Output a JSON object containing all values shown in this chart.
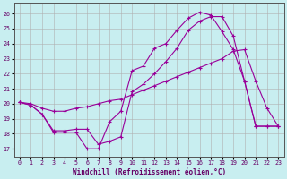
{
  "xlabel": "Windchill (Refroidissement éolien,°C)",
  "background_color": "#c8eef0",
  "grid_color": "#b0b0b0",
  "line_color": "#990099",
  "xlim": [
    -0.5,
    23.5
  ],
  "ylim": [
    16.5,
    26.7
  ],
  "yticks": [
    17,
    18,
    19,
    20,
    21,
    22,
    23,
    24,
    25,
    26
  ],
  "xticks": [
    0,
    1,
    2,
    3,
    4,
    5,
    6,
    7,
    8,
    9,
    10,
    11,
    12,
    13,
    14,
    15,
    16,
    17,
    18,
    19,
    20,
    21,
    22,
    23
  ],
  "curve1_x": [
    0,
    1,
    2,
    3,
    4,
    5,
    6,
    7,
    8,
    9,
    10,
    11,
    12,
    13,
    14,
    15,
    16,
    17,
    18,
    19,
    20,
    21,
    22,
    23
  ],
  "curve1_y": [
    20.1,
    19.9,
    19.3,
    18.1,
    18.1,
    18.1,
    17.0,
    17.0,
    18.8,
    19.5,
    22.2,
    22.5,
    23.7,
    24.0,
    24.9,
    25.7,
    26.1,
    25.9,
    24.8,
    23.6,
    21.5,
    18.5,
    18.5,
    18.5
  ],
  "curve2_x": [
    0,
    1,
    2,
    3,
    4,
    5,
    6,
    7,
    8,
    9,
    10,
    11,
    12,
    13,
    14,
    15,
    16,
    17,
    18,
    19,
    20,
    21,
    22,
    23
  ],
  "curve2_y": [
    20.1,
    19.9,
    19.3,
    18.2,
    18.2,
    18.3,
    18.3,
    17.3,
    17.5,
    17.8,
    20.8,
    21.3,
    22.0,
    22.8,
    23.7,
    24.9,
    25.5,
    25.8,
    25.8,
    24.5,
    21.5,
    18.5,
    18.5,
    18.5
  ],
  "curve3_x": [
    0,
    1,
    2,
    3,
    4,
    5,
    6,
    7,
    8,
    9,
    10,
    11,
    12,
    13,
    14,
    15,
    16,
    17,
    18,
    19,
    20,
    21,
    22,
    23
  ],
  "curve3_y": [
    20.1,
    20.0,
    19.7,
    19.5,
    19.5,
    19.7,
    19.8,
    20.0,
    20.2,
    20.3,
    20.6,
    20.9,
    21.2,
    21.5,
    21.8,
    22.1,
    22.4,
    22.7,
    23.0,
    23.5,
    23.6,
    21.5,
    19.7,
    18.5
  ]
}
